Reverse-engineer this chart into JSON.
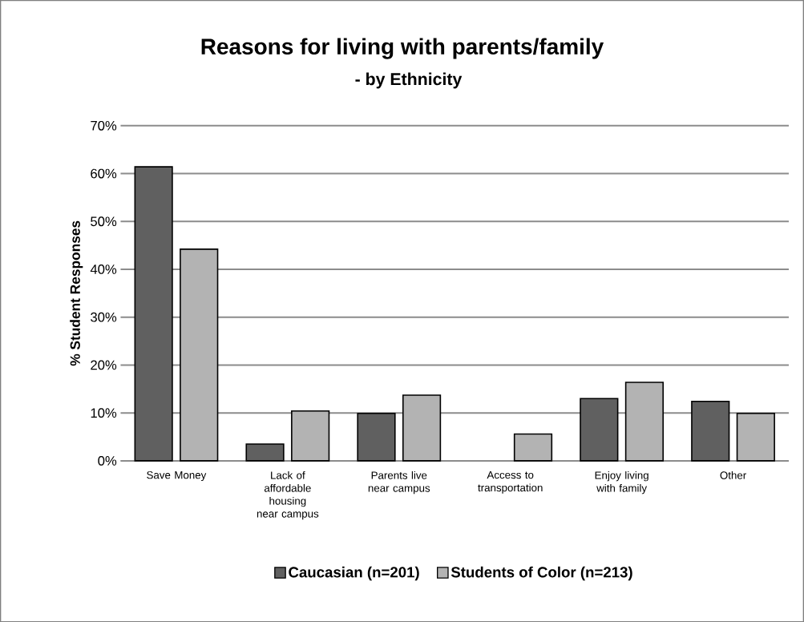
{
  "chart_data": {
    "type": "bar",
    "title": "Reasons for living with parents/family",
    "subtitle": "- by Ethnicity",
    "ylabel": "% Student Responses",
    "categories": [
      "Save Money",
      "Lack of affordable housing near campus",
      "Parents live near campus",
      "Access to transportation",
      "Enjoy living with family",
      "Other"
    ],
    "series": [
      {
        "name": "Caucasian (n=201)",
        "color": "#606060",
        "values": [
          61.4,
          3.5,
          9.9,
          null,
          13.0,
          12.4
        ]
      },
      {
        "name": "Students of Color (n=213)",
        "color": "#b3b3b3",
        "values": [
          44.2,
          10.4,
          13.7,
          5.6,
          16.4,
          9.9
        ]
      }
    ],
    "ylim": [
      0,
      70
    ],
    "yticks": [
      {
        "value": 0,
        "label": "0%"
      },
      {
        "value": 10,
        "label": "10%"
      },
      {
        "value": 20,
        "label": "20%"
      },
      {
        "value": 30,
        "label": "30%"
      },
      {
        "value": 40,
        "label": "40%"
      },
      {
        "value": 50,
        "label": "50%"
      },
      {
        "value": 60,
        "label": "60%"
      },
      {
        "value": 70,
        "label": "70%"
      }
    ],
    "grid": "y",
    "legend": "bottom"
  }
}
